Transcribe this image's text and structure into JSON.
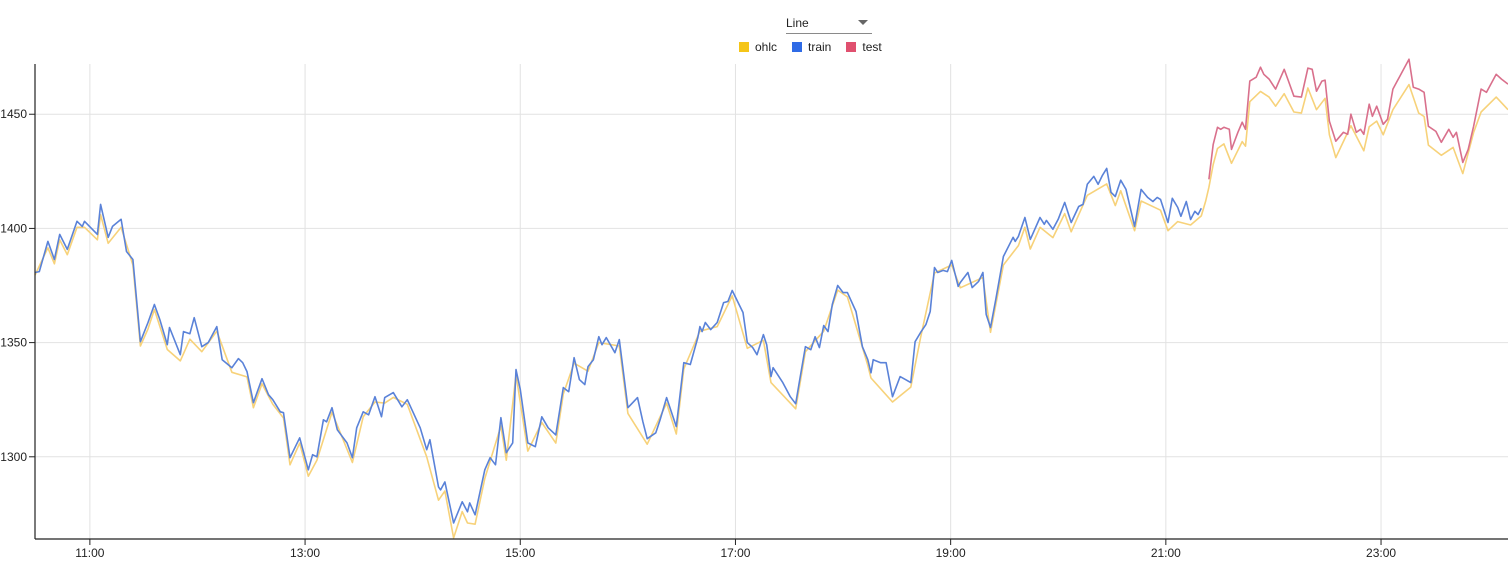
{
  "controls": {
    "chart_type_select": {
      "selected": "Line"
    }
  },
  "legend": [
    {
      "label": "ohlc",
      "color": "#f5c518"
    },
    {
      "label": "train",
      "color": "#2f6be6"
    },
    {
      "label": "test",
      "color": "#e0506f"
    }
  ],
  "chart_data": {
    "type": "line",
    "title": "",
    "xlabel": "",
    "ylabel": "",
    "x_unit": "hour of day",
    "xlim": [
      10.49,
      24.18
    ],
    "ylim": [
      1264,
      1472
    ],
    "xticks": [
      {
        "value": 11,
        "label": "11:00"
      },
      {
        "value": 13,
        "label": "13:00"
      },
      {
        "value": 15,
        "label": "15:00"
      },
      {
        "value": 17,
        "label": "17:00"
      },
      {
        "value": 19,
        "label": "19:00"
      },
      {
        "value": 21,
        "label": "21:00"
      },
      {
        "value": 23,
        "label": "23:00"
      }
    ],
    "yticks": [
      1300,
      1350,
      1400,
      1450
    ],
    "grid": true,
    "legend_position": "top-center",
    "series": [
      {
        "name": "train",
        "color": "#5a82d8",
        "x": [
          10.49,
          10.53,
          10.61,
          10.67,
          10.72,
          10.79,
          10.88,
          10.93,
          10.95,
          11.07,
          11.1,
          11.17,
          11.21,
          11.29,
          11.34,
          11.4,
          11.47,
          11.54,
          11.6,
          11.65,
          11.72,
          11.74,
          11.84,
          11.87,
          11.93,
          11.97,
          12.04,
          12.1,
          12.18,
          12.23,
          12.32,
          12.38,
          12.42,
          12.46,
          12.52,
          12.6,
          12.66,
          12.7,
          12.77,
          12.8,
          12.86,
          12.95,
          13.03,
          13.07,
          13.11,
          13.17,
          13.2,
          13.25,
          13.3,
          13.39,
          13.44,
          13.48,
          13.54,
          13.59,
          13.65,
          13.71,
          13.74,
          13.82,
          13.9,
          13.95,
          14.07,
          14.13,
          14.16,
          14.24,
          14.26,
          14.3,
          14.38,
          14.46,
          14.51,
          14.53,
          14.58,
          14.67,
          14.72,
          14.77,
          14.82,
          14.87,
          14.93,
          14.96,
          15.0,
          15.07,
          15.14,
          15.2,
          15.26,
          15.33,
          15.4,
          15.45,
          15.5,
          15.55,
          15.6,
          15.63,
          15.68,
          15.73,
          15.76,
          15.8,
          15.88,
          15.92,
          16.0,
          16.09,
          16.14,
          16.18,
          16.26,
          16.3,
          16.36,
          16.45,
          16.52,
          16.58,
          16.65,
          16.67,
          16.69,
          16.72,
          16.77,
          16.83,
          16.89,
          16.93,
          16.97,
          17.07,
          17.11,
          17.16,
          17.2,
          17.26,
          17.29,
          17.33,
          17.35,
          17.44,
          17.51,
          17.56,
          17.59,
          17.65,
          17.7,
          17.74,
          17.78,
          17.82,
          17.86,
          17.9,
          17.95,
          18.0,
          18.04,
          18.12,
          18.18,
          18.23,
          18.26,
          18.28,
          18.35,
          18.4,
          18.46,
          18.53,
          18.58,
          18.63,
          18.67,
          18.72,
          18.77,
          18.81,
          18.85,
          18.88,
          18.93,
          18.97,
          19.01,
          19.07,
          19.09,
          19.16,
          19.2,
          19.26,
          19.3,
          19.33,
          19.37,
          19.42,
          19.49,
          19.58,
          19.6,
          19.63,
          19.69,
          19.74,
          19.83,
          19.87,
          19.89,
          19.95,
          20.0,
          20.06,
          20.12,
          20.19,
          20.23,
          20.27,
          20.33,
          20.37,
          20.41,
          20.45,
          20.49,
          20.53,
          20.58,
          20.63,
          20.71,
          20.77,
          20.83,
          20.88,
          20.92,
          20.95,
          21.02,
          21.06,
          21.11,
          21.14,
          21.19,
          21.23,
          21.27,
          21.3,
          21.33
        ],
        "values": [
          1380.7,
          1381.1,
          1394.3,
          1386.4,
          1397.4,
          1390.8,
          1403.1,
          1400.9,
          1403.1,
          1397.4,
          1410.5,
          1396.1,
          1400.9,
          1404.0,
          1389.9,
          1386.4,
          1350.4,
          1358.8,
          1366.7,
          1360.1,
          1349.1,
          1356.6,
          1344.7,
          1354.8,
          1353.9,
          1360.9,
          1348.2,
          1350.0,
          1357.0,
          1342.5,
          1339.0,
          1343.0,
          1341.2,
          1337.3,
          1323.7,
          1334.2,
          1327.2,
          1325.0,
          1319.7,
          1319.3,
          1299.6,
          1308.3,
          1294.3,
          1300.9,
          1300.0,
          1316.2,
          1315.3,
          1321.5,
          1311.8,
          1306.1,
          1299.6,
          1312.7,
          1319.7,
          1318.4,
          1326.3,
          1317.5,
          1325.9,
          1328.1,
          1321.9,
          1325.0,
          1312.7,
          1303.1,
          1307.5,
          1286.8,
          1285.5,
          1289.0,
          1271.0,
          1280.3,
          1275.9,
          1279.8,
          1274.6,
          1294.3,
          1299.6,
          1296.5,
          1317.1,
          1301.8,
          1306.1,
          1338.2,
          1329.4,
          1306.1,
          1304.4,
          1317.5,
          1312.7,
          1309.6,
          1330.3,
          1328.5,
          1343.4,
          1333.8,
          1331.6,
          1339.5,
          1342.5,
          1352.6,
          1349.1,
          1352.2,
          1345.6,
          1351.3,
          1321.5,
          1325.9,
          1315.3,
          1307.9,
          1310.5,
          1316.2,
          1325.9,
          1313.2,
          1341.2,
          1340.4,
          1352.2,
          1357.0,
          1354.8,
          1358.8,
          1355.7,
          1358.8,
          1367.5,
          1368.0,
          1372.8,
          1363.2,
          1350.0,
          1347.8,
          1344.7,
          1353.5,
          1349.1,
          1335.1,
          1339.0,
          1332.5,
          1326.3,
          1323.2,
          1331.6,
          1348.2,
          1346.9,
          1352.6,
          1347.8,
          1357.5,
          1354.8,
          1366.7,
          1375.0,
          1371.9,
          1371.9,
          1363.6,
          1348.2,
          1342.5,
          1336.8,
          1342.5,
          1341.2,
          1341.2,
          1326.3,
          1335.1,
          1333.8,
          1332.5,
          1350.4,
          1354.4,
          1357.9,
          1363.6,
          1382.9,
          1380.7,
          1381.6,
          1381.1,
          1386.0,
          1374.6,
          1376.3,
          1380.7,
          1374.1,
          1376.8,
          1380.7,
          1362.3,
          1356.6,
          1368.9,
          1387.7,
          1396.1,
          1394.3,
          1396.5,
          1404.8,
          1395.2,
          1404.8,
          1401.8,
          1403.5,
          1399.6,
          1404.0,
          1411.4,
          1402.6,
          1409.6,
          1410.5,
          1419.3,
          1422.8,
          1419.3,
          1423.2,
          1426.3,
          1415.8,
          1414.0,
          1421.1,
          1417.1,
          1400.9,
          1417.1,
          1413.6,
          1411.8,
          1413.6,
          1412.7,
          1402.6,
          1413.2,
          1409.2,
          1405.3,
          1411.8,
          1403.9,
          1407.5,
          1406.1,
          1408.8
        ]
      },
      {
        "name": "test",
        "color": "#d9708c",
        "x": [
          21.4,
          21.44,
          21.48,
          21.51,
          21.54,
          21.59,
          21.61,
          21.67,
          21.71,
          21.74,
          21.78,
          21.84,
          21.88,
          21.91,
          21.96,
          22.02,
          22.1,
          22.14,
          22.19,
          22.26,
          22.32,
          22.36,
          22.4,
          22.45,
          22.48,
          22.52,
          22.58,
          22.65,
          22.69,
          22.72,
          22.77,
          22.81,
          22.84,
          22.89,
          22.92,
          22.96,
          23.02,
          23.06,
          23.11,
          23.17,
          23.21,
          23.26,
          23.3,
          23.35,
          23.4,
          23.44,
          23.51,
          23.56,
          23.63,
          23.67,
          23.7,
          23.76,
          23.81,
          23.86,
          23.93,
          23.98,
          24.07,
          24.12,
          24.18
        ],
        "values": [
          1421.5,
          1436.8,
          1444.3,
          1443.4,
          1444.3,
          1443.4,
          1434.6,
          1442.1,
          1446.5,
          1443.4,
          1464.5,
          1466.2,
          1470.6,
          1467.5,
          1465.4,
          1461.0,
          1469.7,
          1464.5,
          1457.9,
          1457.5,
          1470.2,
          1469.7,
          1460.1,
          1464.5,
          1464.9,
          1446.9,
          1438.2,
          1442.1,
          1441.2,
          1450.0,
          1442.1,
          1443.4,
          1441.2,
          1454.4,
          1449.1,
          1453.5,
          1445.6,
          1447.8,
          1461.0,
          1466.2,
          1469.7,
          1474.1,
          1461.8,
          1461.0,
          1459.6,
          1444.7,
          1442.5,
          1437.7,
          1443.4,
          1439.9,
          1442.1,
          1428.9,
          1434.6,
          1444.7,
          1461.0,
          1459.6,
          1467.5,
          1465.4,
          1463.2
        ]
      },
      {
        "name": "ohlc",
        "color": "#f7d27a",
        "x": [
          10.49,
          10.61,
          10.67,
          10.72,
          10.79,
          10.88,
          10.95,
          11.07,
          11.1,
          11.17,
          11.29,
          11.4,
          11.47,
          11.54,
          11.6,
          11.72,
          11.84,
          11.93,
          12.04,
          12.18,
          12.32,
          12.46,
          12.52,
          12.6,
          12.7,
          12.8,
          12.86,
          12.95,
          13.03,
          13.11,
          13.25,
          13.44,
          13.54,
          13.65,
          13.74,
          13.82,
          13.95,
          14.13,
          14.24,
          14.3,
          14.38,
          14.46,
          14.51,
          14.58,
          14.67,
          14.82,
          14.87,
          14.96,
          15.07,
          15.2,
          15.33,
          15.4,
          15.5,
          15.63,
          15.73,
          15.92,
          16.0,
          16.18,
          16.36,
          16.45,
          16.52,
          16.67,
          16.83,
          16.97,
          17.11,
          17.26,
          17.33,
          17.56,
          17.65,
          17.82,
          17.95,
          18.04,
          18.23,
          18.26,
          18.46,
          18.63,
          18.72,
          18.85,
          19.01,
          19.09,
          19.3,
          19.37,
          19.49,
          19.63,
          19.69,
          19.74,
          19.83,
          19.95,
          20.06,
          20.12,
          20.27,
          20.45,
          20.53,
          20.58,
          20.71,
          20.77,
          20.95,
          21.02,
          21.11,
          21.23,
          21.33,
          21.37,
          21.4,
          21.44,
          21.48,
          21.54,
          21.61,
          21.71,
          21.74,
          21.78,
          21.88,
          21.96,
          22.02,
          22.1,
          22.19,
          22.26,
          22.32,
          22.4,
          22.48,
          22.52,
          22.58,
          22.72,
          22.84,
          22.89,
          22.96,
          23.02,
          23.11,
          23.26,
          23.35,
          23.4,
          23.44,
          23.56,
          23.67,
          23.76,
          23.86,
          23.93,
          24.07,
          24.18
        ],
        "values": [
          1379.5,
          1391.5,
          1384.5,
          1395.0,
          1388.5,
          1400.5,
          1400.5,
          1395.0,
          1406.0,
          1393.5,
          1400.5,
          1384.0,
          1348.5,
          1356.0,
          1364.5,
          1347.0,
          1342.0,
          1351.5,
          1346.0,
          1355.0,
          1337.0,
          1335.0,
          1321.5,
          1332.0,
          1323.0,
          1317.0,
          1296.5,
          1306.0,
          1291.5,
          1298.5,
          1319.5,
          1297.5,
          1317.5,
          1324.0,
          1323.5,
          1326.0,
          1323.0,
          1300.0,
          1281.0,
          1285.0,
          1264.5,
          1276.0,
          1271.0,
          1270.5,
          1290.5,
          1313.5,
          1298.5,
          1336.0,
          1302.5,
          1315.0,
          1306.0,
          1327.5,
          1341.0,
          1337.5,
          1350.0,
          1348.5,
          1319.0,
          1305.5,
          1323.5,
          1310.0,
          1338.5,
          1355.0,
          1357.0,
          1370.5,
          1347.5,
          1351.0,
          1332.5,
          1321.0,
          1346.0,
          1355.0,
          1373.0,
          1370.0,
          1340.0,
          1334.5,
          1324.0,
          1330.5,
          1352.0,
          1380.5,
          1384.0,
          1374.0,
          1378.5,
          1354.5,
          1384.0,
          1392.5,
          1400.5,
          1391.0,
          1400.5,
          1396.0,
          1406.5,
          1398.5,
          1414.5,
          1419.5,
          1410.0,
          1416.5,
          1399.0,
          1412.0,
          1408.0,
          1399.0,
          1403.0,
          1401.5,
          1405.5,
          1412.0,
          1418.0,
          1428.0,
          1435.0,
          1437.0,
          1428.5,
          1438.0,
          1436.0,
          1455.5,
          1460.0,
          1457.5,
          1453.5,
          1459.0,
          1451.0,
          1450.5,
          1461.5,
          1452.0,
          1457.0,
          1441.0,
          1431.0,
          1445.0,
          1434.0,
          1444.5,
          1447.0,
          1441.0,
          1452.0,
          1463.0,
          1450.5,
          1449.0,
          1436.5,
          1432.0,
          1435.5,
          1424.0,
          1442.0,
          1451.0,
          1457.5,
          1452.0
        ]
      }
    ]
  }
}
